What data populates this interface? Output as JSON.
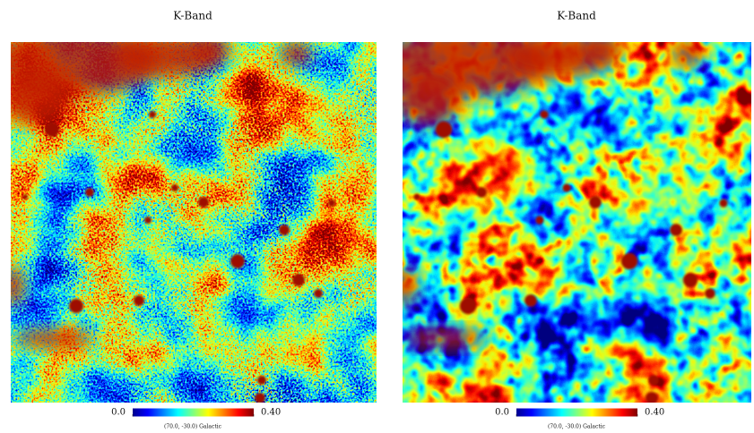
{
  "panels": [
    {
      "title": "K-Band",
      "colorbar": {
        "ticks": [
          {
            "value": 0,
            "label": "0.0"
          },
          {
            "value": 0.4,
            "label": "0.40"
          }
        ]
      },
      "coordinates": "(70.0, -30.0) Galactic"
    },
    {
      "title": "K-Band",
      "colorbar": {
        "ticks": [
          {
            "value": 0,
            "label": "0.0"
          },
          {
            "value": 0.4,
            "label": "0.40"
          }
        ]
      },
      "coordinates": "(70.0, -30.0) Galactic"
    }
  ]
}
